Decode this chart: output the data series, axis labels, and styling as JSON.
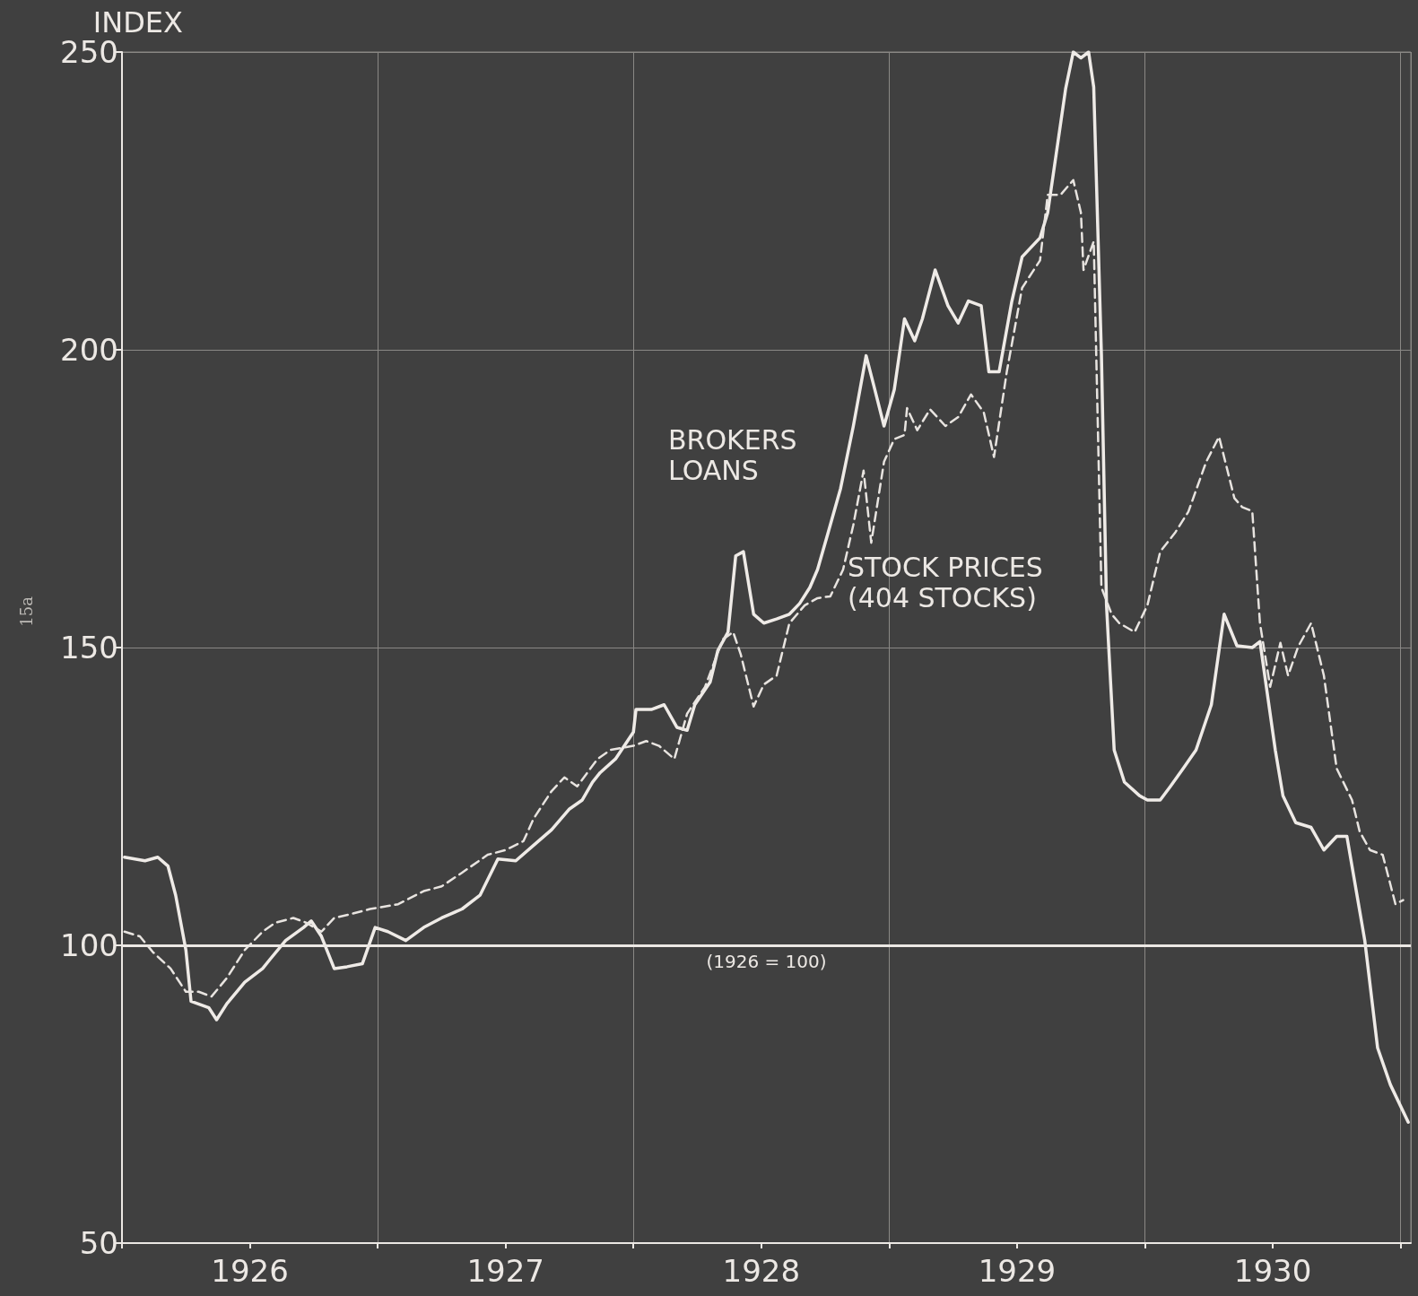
{
  "chart_data": {
    "type": "line",
    "ylabel": "INDEX",
    "xlim": [
      1926,
      1931.04
    ],
    "ylim": [
      50,
      250
    ],
    "yticks": [
      50,
      100,
      150,
      200,
      250
    ],
    "xticks": [
      {
        "value": 1926,
        "label": null
      },
      {
        "value": 1926.5,
        "label": "1926"
      },
      {
        "value": 1927,
        "label": null
      },
      {
        "value": 1927.5,
        "label": "1927"
      },
      {
        "value": 1928,
        "label": null
      },
      {
        "value": 1928.5,
        "label": "1928"
      },
      {
        "value": 1929,
        "label": null
      },
      {
        "value": 1929.5,
        "label": "1929"
      },
      {
        "value": 1930,
        "label": null
      },
      {
        "value": 1930.5,
        "label": "1930"
      },
      {
        "value": 1931,
        "label": null
      }
    ],
    "grid": true,
    "legend": false,
    "marker": "none",
    "ref_lines": [
      {
        "axis": "y",
        "value": 100,
        "label": "(1926 = 100)",
        "color": "#ece8e4",
        "line_style": "solid"
      }
    ],
    "annotations": [
      "15a"
    ],
    "series": [
      {
        "name": "BROKERS LOANS",
        "color": "#efebe7",
        "line_style": "solid",
        "x": [
          1926.01,
          1926.09,
          1926.14,
          1926.18,
          1926.21,
          1926.25,
          1926.27,
          1926.34,
          1926.37,
          1926.41,
          1926.48,
          1926.55,
          1926.58,
          1926.64,
          1926.71,
          1926.74,
          1926.78,
          1926.83,
          1926.88,
          1926.94,
          1926.99,
          1927.04,
          1927.11,
          1927.18,
          1927.25,
          1927.33,
          1927.4,
          1927.47,
          1927.54,
          1927.61,
          1927.68,
          1927.75,
          1927.8,
          1927.84,
          1927.87,
          1927.93,
          1928.0,
          1928.01,
          1928.07,
          1928.12,
          1928.17,
          1928.21,
          1928.24,
          1928.3,
          1928.33,
          1928.37,
          1928.4,
          1928.43,
          1928.47,
          1928.51,
          1928.56,
          1928.61,
          1928.65,
          1928.69,
          1928.72,
          1928.76,
          1928.81,
          1928.86,
          1928.91,
          1928.94,
          1928.98,
          1929.02,
          1929.06,
          1929.1,
          1929.13,
          1929.18,
          1929.23,
          1929.27,
          1929.31,
          1929.36,
          1929.39,
          1929.43,
          1929.48,
          1929.52,
          1929.59,
          1929.62,
          1929.69,
          1929.72,
          1929.75,
          1929.78,
          1929.8,
          1929.83,
          1929.85,
          1929.88,
          1929.92,
          1929.98,
          1930.01,
          1930.06,
          1930.1,
          1930.15,
          1930.2,
          1930.26,
          1930.31,
          1930.36,
          1930.42,
          1930.45,
          1930.51,
          1930.54,
          1930.59,
          1930.65,
          1930.7,
          1930.75,
          1930.79,
          1930.86,
          1930.91,
          1930.96,
          1931.03
        ],
        "values": [
          114.8,
          114.2,
          114.8,
          113.3,
          108.4,
          99.2,
          90.6,
          89.5,
          87.5,
          90.2,
          93.8,
          96.1,
          97.7,
          100.8,
          103,
          104.1,
          101.5,
          96.1,
          96.4,
          96.9,
          103,
          102.3,
          100.8,
          103,
          104.6,
          106.1,
          108.4,
          114.5,
          114.2,
          116.8,
          119.4,
          122.9,
          124.4,
          127.4,
          129,
          131.3,
          135.8,
          139.6,
          139.6,
          140.4,
          136.6,
          136.1,
          140.4,
          144.2,
          149.5,
          152.6,
          165.4,
          166.1,
          155.6,
          154.1,
          154.8,
          155.6,
          157.4,
          160.1,
          163.1,
          169.1,
          176.7,
          187.2,
          199,
          194,
          187.2,
          193.3,
          205.2,
          201.5,
          205.2,
          213.4,
          207.4,
          204.5,
          208.2,
          207.4,
          196.3,
          196.3,
          208.2,
          215.6,
          218.8,
          223,
          243.8,
          250,
          249,
          250,
          244.1,
          199.3,
          157.1,
          132.8,
          127.4,
          125.1,
          124.4,
          124.4,
          126.7,
          129.7,
          132.8,
          140.4,
          155.6,
          150.3,
          150,
          151,
          132.8,
          125.1,
          120.6,
          119.8,
          116,
          118.3,
          118.3,
          100.8,
          82.8,
          76.6,
          70.3
        ]
      },
      {
        "name": "STOCK PRICES (404 STOCKS)",
        "color": "#e8e4e0",
        "line_style": "dashed",
        "x": [
          1926.01,
          1926.07,
          1926.12,
          1926.19,
          1926.25,
          1926.3,
          1926.35,
          1926.41,
          1926.48,
          1926.55,
          1926.6,
          1926.67,
          1926.72,
          1926.78,
          1926.83,
          1926.9,
          1926.97,
          1927.08,
          1927.18,
          1927.25,
          1927.33,
          1927.43,
          1927.5,
          1927.57,
          1927.61,
          1927.68,
          1927.73,
          1927.78,
          1927.86,
          1927.91,
          1928.0,
          1928.05,
          1928.1,
          1928.16,
          1928.21,
          1928.28,
          1928.35,
          1928.39,
          1928.42,
          1928.47,
          1928.51,
          1928.56,
          1928.61,
          1928.67,
          1928.72,
          1928.77,
          1928.82,
          1928.86,
          1928.9,
          1928.93,
          1928.98,
          1929.02,
          1929.06,
          1929.07,
          1929.11,
          1929.16,
          1929.22,
          1929.27,
          1929.32,
          1929.37,
          1929.41,
          1929.46,
          1929.52,
          1929.59,
          1929.62,
          1929.67,
          1929.72,
          1929.75,
          1929.76,
          1929.8,
          1929.83,
          1929.87,
          1929.9,
          1929.96,
          1930.01,
          1930.06,
          1930.12,
          1930.17,
          1930.24,
          1930.29,
          1930.35,
          1930.38,
          1930.42,
          1930.45,
          1930.49,
          1930.53,
          1930.56,
          1930.6,
          1930.65,
          1930.7,
          1930.75,
          1930.81,
          1930.84,
          1930.88,
          1930.93,
          1930.98,
          1931.01
        ],
        "values": [
          102.3,
          101.5,
          98.9,
          96.1,
          92.2,
          92.2,
          91.4,
          94.5,
          99.2,
          102.3,
          103.8,
          104.6,
          103.8,
          102.3,
          104.6,
          105.3,
          106.1,
          106.9,
          109.1,
          109.9,
          112.2,
          115.2,
          116,
          117.5,
          121.3,
          125.9,
          128.2,
          126.7,
          131.3,
          132.8,
          133.5,
          134.3,
          133.5,
          131.3,
          138.9,
          143.4,
          151.4,
          152.6,
          148.8,
          140.1,
          143.8,
          145.3,
          154.1,
          157.1,
          158.3,
          158.6,
          163.1,
          170.6,
          179.7,
          167.6,
          181.2,
          185,
          185.7,
          190.2,
          186.5,
          190,
          187.2,
          188.7,
          192.5,
          189.5,
          182,
          196.3,
          210.4,
          215,
          226,
          226,
          228.5,
          223,
          213.4,
          218.2,
          160.1,
          155.6,
          154.1,
          152.6,
          157.1,
          166.1,
          169.4,
          172.8,
          181.2,
          185.4,
          175.1,
          173.6,
          172.9,
          154.1,
          143.4,
          150.8,
          145.3,
          150.2,
          154.1,
          145.3,
          129.7,
          124.4,
          119.1,
          116,
          115.2,
          106.9,
          107.6
        ]
      }
    ]
  }
}
